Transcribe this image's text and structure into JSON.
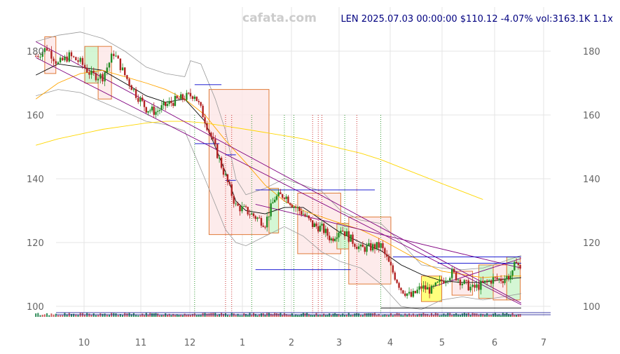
{
  "watermark": "cafata.com",
  "header": "LEN 2025.07.03 00:00:00 $110.12 -4.07% vol:3163.1K 1.1x",
  "chart_data": {
    "type": "candlestick",
    "ticker": "LEN",
    "x_ticks": [
      "10",
      "11",
      "12",
      "1",
      "2",
      "3",
      "4",
      "5",
      "6",
      "7"
    ],
    "y_ticks": [
      100,
      120,
      140,
      160,
      180
    ],
    "ylim": [
      96,
      191
    ],
    "grid": true,
    "last_close": 110.12,
    "change_pct": -4.07,
    "volume": "3163.1K",
    "close_series": {
      "name": "close",
      "points": [
        [
          0.0,
          178.5
        ],
        [
          0.5,
          181.0
        ],
        [
          1.0,
          176.0
        ],
        [
          1.5,
          178.5
        ],
        [
          2.0,
          176.5
        ],
        [
          2.5,
          172.5
        ],
        [
          3.0,
          172.0
        ],
        [
          3.5,
          179.5
        ],
        [
          4.0,
          172.5
        ],
        [
          4.5,
          166.5
        ],
        [
          5.0,
          162.0
        ],
        [
          5.5,
          161.0
        ],
        [
          6.0,
          163.0
        ],
        [
          6.5,
          164.5
        ],
        [
          7.0,
          165.5
        ],
        [
          7.5,
          166.5
        ],
        [
          8.0,
          158.5
        ],
        [
          8.5,
          149.5
        ],
        [
          9.0,
          140.5
        ],
        [
          9.5,
          131.5
        ],
        [
          10.0,
          130.0
        ],
        [
          10.5,
          128.0
        ],
        [
          11.0,
          126.0
        ],
        [
          11.5,
          134.0
        ],
        [
          12.0,
          135.0
        ],
        [
          12.5,
          131.5
        ],
        [
          13.0,
          129.0
        ],
        [
          13.5,
          125.5
        ],
        [
          14.0,
          124.5
        ],
        [
          14.5,
          121.0
        ],
        [
          15.0,
          124.5
        ],
        [
          15.5,
          121.0
        ],
        [
          16.0,
          118.0
        ],
        [
          16.5,
          118.5
        ],
        [
          17.0,
          119.0
        ],
        [
          17.5,
          112.0
        ],
        [
          18.0,
          105.5
        ],
        [
          18.5,
          103.0
        ],
        [
          19.0,
          106.0
        ],
        [
          19.5,
          105.0
        ],
        [
          20.0,
          108.0
        ],
        [
          20.5,
          110.5
        ],
        [
          21.0,
          107.5
        ],
        [
          21.5,
          105.5
        ],
        [
          22.0,
          107.0
        ],
        [
          22.5,
          108.5
        ],
        [
          23.0,
          108.5
        ],
        [
          23.5,
          110.0
        ],
        [
          23.7,
          115.0
        ],
        [
          23.95,
          110.12
        ]
      ]
    },
    "moving_averages": [
      {
        "color": "#000000",
        "points": [
          [
            0.0,
            172.5
          ],
          [
            1.0,
            176.0
          ],
          [
            2.0,
            175.0
          ],
          [
            3.0,
            174.0
          ],
          [
            4.0,
            170.0
          ],
          [
            5.0,
            166.0
          ],
          [
            6.0,
            164.0
          ],
          [
            7.0,
            165.0
          ],
          [
            8.0,
            158.0
          ],
          [
            8.5,
            150.0
          ],
          [
            9.0,
            142.0
          ],
          [
            9.5,
            133.0
          ],
          [
            10.0,
            130.0
          ],
          [
            11.0,
            129.0
          ],
          [
            12.0,
            131.0
          ],
          [
            13.0,
            131.0
          ],
          [
            14.0,
            127.0
          ],
          [
            15.0,
            123.0
          ],
          [
            16.0,
            120.0
          ],
          [
            17.0,
            117.5
          ],
          [
            18.0,
            113.0
          ],
          [
            19.0,
            110.0
          ],
          [
            20.0,
            108.0
          ],
          [
            21.0,
            107.5
          ],
          [
            22.0,
            107.5
          ],
          [
            23.0,
            108.5
          ],
          [
            23.95,
            109.0
          ]
        ]
      },
      {
        "color": "#ffa500",
        "points": [
          [
            0.0,
            165.0
          ],
          [
            1.0,
            170.0
          ],
          [
            2.0,
            173.0
          ],
          [
            3.0,
            174.0
          ],
          [
            4.0,
            172.0
          ],
          [
            5.0,
            170.0
          ],
          [
            6.0,
            168.0
          ],
          [
            7.0,
            165.0
          ],
          [
            8.0,
            160.0
          ],
          [
            9.0,
            152.0
          ],
          [
            10.0,
            145.0
          ],
          [
            11.0,
            138.0
          ],
          [
            12.0,
            133.0
          ],
          [
            13.0,
            130.0
          ],
          [
            14.0,
            128.0
          ],
          [
            15.0,
            126.0
          ],
          [
            16.0,
            124.0
          ],
          [
            17.0,
            121.0
          ],
          [
            18.0,
            117.5
          ],
          [
            19.0,
            114.0
          ],
          [
            20.0,
            111.0
          ],
          [
            21.0,
            110.0
          ],
          [
            22.0,
            109.0
          ],
          [
            23.0,
            109.5
          ],
          [
            23.95,
            109.5
          ]
        ]
      },
      {
        "color": "#ffd700",
        "points": [
          [
            0.0,
            150.5
          ],
          [
            1.0,
            152.5
          ],
          [
            2.0,
            154.0
          ],
          [
            3.0,
            155.5
          ],
          [
            4.0,
            156.5
          ],
          [
            5.0,
            157.5
          ],
          [
            6.0,
            158.0
          ],
          [
            7.0,
            158.0
          ],
          [
            8.0,
            157.5
          ],
          [
            9.0,
            156.5
          ],
          [
            10.0,
            155.5
          ],
          [
            11.0,
            154.5
          ],
          [
            12.0,
            153.5
          ],
          [
            13.0,
            152.5
          ],
          [
            14.0,
            151.0
          ],
          [
            15.0,
            149.5
          ],
          [
            16.0,
            148.0
          ],
          [
            17.0,
            146.0
          ],
          [
            18.0,
            143.5
          ],
          [
            19.0,
            141.0
          ],
          [
            20.0,
            138.5
          ],
          [
            21.0,
            136.0
          ],
          [
            22.0,
            133.5
          ]
        ]
      }
    ],
    "bands": [
      {
        "color": "#999999",
        "points": [
          [
            0.0,
            183.0
          ],
          [
            1.0,
            185.0
          ],
          [
            2.0,
            186.0
          ],
          [
            3.0,
            184.0
          ],
          [
            4.0,
            180.0
          ],
          [
            5.0,
            175.0
          ],
          [
            6.0,
            173.0
          ],
          [
            7.0,
            172.0
          ],
          [
            7.3,
            177.0
          ],
          [
            7.8,
            176.0
          ],
          [
            8.5,
            165.0
          ],
          [
            9.0,
            155.0
          ],
          [
            9.5,
            140.0
          ],
          [
            10.0,
            135.0
          ],
          [
            11.0,
            137.0
          ],
          [
            12.0,
            140.0
          ],
          [
            13.0,
            138.0
          ],
          [
            14.0,
            136.0
          ],
          [
            15.0,
            130.0
          ],
          [
            16.0,
            127.0
          ],
          [
            17.0,
            126.0
          ],
          [
            18.0,
            120.0
          ],
          [
            19.0,
            113.0
          ],
          [
            20.0,
            112.0
          ],
          [
            21.0,
            111.5
          ],
          [
            22.0,
            112.0
          ],
          [
            23.0,
            114.0
          ],
          [
            23.95,
            116.0
          ]
        ]
      },
      {
        "color": "#999999",
        "points": [
          [
            0.0,
            166.0
          ],
          [
            1.0,
            168.0
          ],
          [
            2.0,
            167.0
          ],
          [
            3.0,
            164.0
          ],
          [
            4.0,
            161.0
          ],
          [
            5.0,
            158.0
          ],
          [
            6.0,
            157.0
          ],
          [
            7.0,
            155.0
          ],
          [
            8.0,
            140.0
          ],
          [
            9.0,
            124.0
          ],
          [
            9.5,
            120.0
          ],
          [
            10.0,
            119.0
          ],
          [
            11.0,
            122.0
          ],
          [
            12.0,
            125.0
          ],
          [
            13.0,
            122.0
          ],
          [
            14.0,
            117.0
          ],
          [
            15.0,
            114.0
          ],
          [
            16.0,
            112.0
          ],
          [
            17.0,
            107.0
          ],
          [
            18.0,
            100.0
          ],
          [
            19.0,
            99.0
          ],
          [
            20.0,
            102.0
          ],
          [
            21.0,
            103.0
          ],
          [
            22.0,
            102.0
          ],
          [
            23.0,
            103.0
          ],
          [
            23.95,
            104.0
          ]
        ]
      }
    ],
    "trend_lines": [
      {
        "color": "#800080",
        "from": [
          0.0,
          183.0
        ],
        "to": [
          23.95,
          101.0
        ]
      },
      {
        "color": "#800080",
        "from": [
          0.0,
          178.0
        ],
        "to": [
          23.95,
          100.5
        ]
      },
      {
        "color": "#800080",
        "from": [
          10.5,
          132.0
        ],
        "to": [
          23.95,
          112.0
        ]
      },
      {
        "color": "#800080",
        "from": [
          19.5,
          106.0
        ],
        "to": [
          23.95,
          115.0
        ]
      }
    ],
    "level_lines": [
      {
        "color": "#0000cd",
        "y": 169.5,
        "x0": 7.5,
        "x1": 8.8
      },
      {
        "color": "#0000cd",
        "y": 151.0,
        "x0": 7.5,
        "x1": 8.7
      },
      {
        "color": "#0000cd",
        "y": 147.5,
        "x0": 9.0,
        "x1": 9.5
      },
      {
        "color": "#0000cd",
        "y": 139.5,
        "x0": 9.0,
        "x1": 9.5
      },
      {
        "color": "#0000cd",
        "y": 136.5,
        "x0": 10.5,
        "x1": 16.7
      },
      {
        "color": "#0000cd",
        "y": 111.5,
        "x0": 10.5,
        "x1": 15.5
      },
      {
        "color": "#0000cd",
        "y": 115.5,
        "x0": 17.6,
        "x1": 23.95
      },
      {
        "color": "#0000cd",
        "y": 113.5,
        "x0": 19.8,
        "x1": 23.95
      },
      {
        "color": "#000000",
        "y": 99.5,
        "x0": 17.0,
        "x1": 23.95
      }
    ],
    "zones": [
      {
        "x0": 0.4,
        "x1": 0.9,
        "y0": 173.0,
        "y1": 184.5,
        "fill": "#fde8e8",
        "stroke": "#e07b39"
      },
      {
        "x0": 2.2,
        "x1": 2.8,
        "y0": 170.0,
        "y1": 181.5,
        "fill": "#ccf5cc",
        "stroke": "#e07b39"
      },
      {
        "x0": 2.8,
        "x1": 3.4,
        "y0": 165.0,
        "y1": 181.5,
        "fill": "#fde8e8",
        "stroke": "#e07b39"
      },
      {
        "x0": 8.2,
        "x1": 11.2,
        "y0": 122.5,
        "y1": 168.0,
        "fill": "#fde8e8",
        "stroke": "#e07b39"
      },
      {
        "x0": 11.2,
        "x1": 11.7,
        "y0": 123.0,
        "y1": 137.0,
        "fill": "#ccf5cc",
        "stroke": "#e07b39"
      },
      {
        "x0": 12.7,
        "x1": 15.0,
        "y0": 116.5,
        "y1": 135.5,
        "fill": "#fde8e8",
        "stroke": "#e07b39"
      },
      {
        "x0": 14.8,
        "x1": 15.4,
        "y0": 118.0,
        "y1": 126.0,
        "fill": "#ccf5cc",
        "stroke": "#e07b39"
      },
      {
        "x0": 15.4,
        "x1": 17.5,
        "y0": 107.0,
        "y1": 128.0,
        "fill": "#fde8e8",
        "stroke": "#e07b39"
      },
      {
        "x0": 19.0,
        "x1": 20.0,
        "y0": 101.5,
        "y1": 109.5,
        "fill": "#ffff66",
        "stroke": "#e07b39"
      },
      {
        "x0": 21.8,
        "x1": 22.5,
        "y0": 102.5,
        "y1": 113.0,
        "fill": "#ccf5cc",
        "stroke": "#e07b39"
      },
      {
        "x0": 22.5,
        "x1": 23.2,
        "y0": 102.0,
        "y1": 113.0,
        "fill": "#fde8e8",
        "stroke": "#e07b39"
      },
      {
        "x0": 23.2,
        "x1": 23.9,
        "y0": 102.0,
        "y1": 115.5,
        "fill": "#ccf5cc",
        "stroke": "#e07b39"
      },
      {
        "x0": 20.5,
        "x1": 21.5,
        "y0": 103.5,
        "y1": 111.0,
        "fill": "#fde8e8",
        "stroke": "#e07b39"
      }
    ],
    "signal_markers": [
      {
        "x": 7.5,
        "color": "#008000"
      },
      {
        "x": 9.0,
        "color": "#c00000"
      },
      {
        "x": 9.3,
        "color": "#c00000"
      },
      {
        "x": 10.3,
        "color": "#008000"
      },
      {
        "x": 12.0,
        "color": "#008000"
      },
      {
        "x": 12.5,
        "color": "#008000"
      },
      {
        "x": 13.5,
        "color": "#c00000"
      },
      {
        "x": 13.8,
        "color": "#c00000"
      },
      {
        "x": 14.0,
        "color": "#c00000"
      },
      {
        "x": 15.2,
        "color": "#008000"
      },
      {
        "x": 15.8,
        "color": "#c00000"
      },
      {
        "x": 17.0,
        "color": "#008000"
      }
    ]
  }
}
